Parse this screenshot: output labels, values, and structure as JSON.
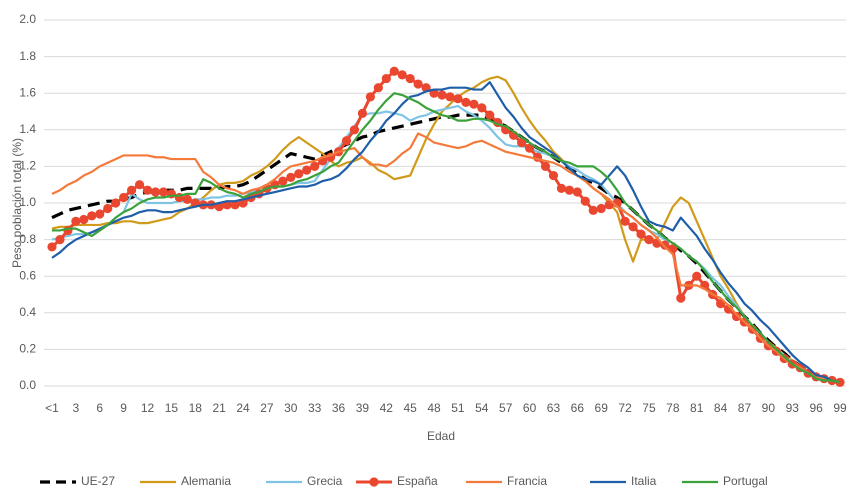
{
  "chart_data": {
    "type": "line",
    "x_label": "Edad",
    "y_label": "Peso población total (%)",
    "categories": [
      "<1",
      null,
      null,
      "3",
      null,
      null,
      "6",
      null,
      null,
      "9",
      null,
      null,
      "12",
      null,
      null,
      "15",
      null,
      null,
      "18",
      null,
      null,
      "21",
      null,
      null,
      "24",
      null,
      null,
      "27",
      null,
      null,
      "30",
      null,
      null,
      "33",
      null,
      null,
      "36",
      null,
      null,
      "39",
      null,
      null,
      "42",
      null,
      null,
      "45",
      null,
      null,
      "48",
      null,
      null,
      "51",
      null,
      null,
      "54",
      null,
      null,
      "57",
      null,
      null,
      "60",
      null,
      null,
      "63",
      null,
      null,
      "66",
      null,
      null,
      "69",
      null,
      null,
      "72",
      null,
      null,
      "75",
      null,
      null,
      "78",
      null,
      null,
      "81",
      null,
      null,
      "84",
      null,
      null,
      "87",
      null,
      null,
      "90",
      null,
      null,
      "93",
      null,
      null,
      "96",
      null,
      null,
      "99"
    ],
    "ylim": [
      0,
      2
    ],
    "yticks": [
      {
        "value": 0,
        "label": "0.0"
      },
      {
        "value": 0.2,
        "label": "0.2"
      },
      {
        "value": 0.4,
        "label": "0.4"
      },
      {
        "value": 0.6,
        "label": "0.6"
      },
      {
        "value": 0.8,
        "label": "0.8"
      },
      {
        "value": 1,
        "label": "1.0"
      },
      {
        "value": 1.2,
        "label": "1.2"
      },
      {
        "value": 1.4,
        "label": "1.4"
      },
      {
        "value": 1.6,
        "label": "1.6"
      },
      {
        "value": 1.8,
        "label": "1.8"
      },
      {
        "value": 2,
        "label": "2.0"
      }
    ],
    "grid": true,
    "legend": "bottom",
    "series": [
      {
        "name": "UE-27",
        "color": "#000000",
        "line_style": "dashed",
        "values": [
          0.92,
          0.94,
          0.96,
          0.97,
          0.98,
          0.99,
          1.0,
          1.01,
          1.01,
          1.02,
          1.03,
          1.05,
          1.06,
          1.06,
          1.07,
          1.07,
          1.07,
          1.08,
          1.08,
          1.08,
          1.08,
          1.08,
          1.09,
          1.09,
          1.1,
          1.12,
          1.15,
          1.18,
          1.21,
          1.24,
          1.27,
          1.26,
          1.25,
          1.24,
          1.26,
          1.28,
          1.3,
          1.32,
          1.34,
          1.36,
          1.37,
          1.39,
          1.4,
          1.41,
          1.42,
          1.43,
          1.44,
          1.45,
          1.46,
          1.47,
          1.47,
          1.48,
          1.48,
          1.48,
          1.48,
          1.46,
          1.44,
          1.42,
          1.39,
          1.36,
          1.33,
          1.3,
          1.28,
          1.25,
          1.22,
          1.19,
          1.16,
          1.13,
          1.11,
          1.08,
          1.05,
          1.03,
          1.0,
          0.96,
          0.92,
          0.88,
          0.85,
          0.81,
          0.78,
          0.74,
          0.71,
          0.67,
          0.62,
          0.57,
          0.52,
          0.47,
          0.43,
          0.38,
          0.34,
          0.29,
          0.25,
          0.21,
          0.18,
          0.14,
          0.11,
          0.08,
          0.06,
          0.04,
          0.03,
          0.02
        ]
      },
      {
        "name": "Alemania",
        "color": "#d19a1a",
        "values": [
          0.86,
          0.87,
          0.87,
          0.88,
          0.88,
          0.88,
          0.88,
          0.89,
          0.89,
          0.9,
          0.9,
          0.89,
          0.89,
          0.9,
          0.91,
          0.92,
          0.95,
          0.97,
          1.0,
          1.03,
          1.07,
          1.1,
          1.11,
          1.11,
          1.12,
          1.15,
          1.17,
          1.2,
          1.24,
          1.29,
          1.33,
          1.36,
          1.33,
          1.3,
          1.27,
          1.23,
          1.2,
          1.22,
          1.23,
          1.25,
          1.22,
          1.18,
          1.16,
          1.13,
          1.14,
          1.15,
          1.25,
          1.35,
          1.43,
          1.5,
          1.54,
          1.58,
          1.61,
          1.63,
          1.66,
          1.68,
          1.69,
          1.67,
          1.6,
          1.52,
          1.45,
          1.39,
          1.34,
          1.28,
          1.24,
          1.19,
          1.15,
          1.12,
          1.08,
          1.05,
          1.0,
          0.95,
          0.8,
          0.68,
          0.8,
          0.8,
          0.8,
          0.89,
          0.98,
          1.03,
          1.0,
          0.9,
          0.8,
          0.7,
          0.6,
          0.53,
          0.45,
          0.38,
          0.33,
          0.29,
          0.24,
          0.21,
          0.17,
          0.14,
          0.11,
          0.08,
          0.05,
          0.04,
          0.03,
          0.02
        ]
      },
      {
        "name": "Grecia",
        "color": "#7fc4e4",
        "values": [
          0.8,
          0.81,
          0.82,
          0.83,
          0.83,
          0.84,
          0.85,
          0.88,
          0.92,
          0.95,
          1.05,
          1.02,
          1.0,
          1.0,
          1.0,
          1.0,
          1.01,
          1.01,
          1.02,
          1.02,
          1.03,
          1.03,
          1.04,
          1.04,
          1.05,
          1.06,
          1.07,
          1.08,
          1.09,
          1.09,
          1.1,
          1.11,
          1.11,
          1.12,
          1.18,
          1.24,
          1.3,
          1.36,
          1.42,
          1.48,
          1.49,
          1.49,
          1.5,
          1.49,
          1.48,
          1.45,
          1.47,
          1.48,
          1.5,
          1.51,
          1.52,
          1.53,
          1.5,
          1.48,
          1.45,
          1.41,
          1.36,
          1.32,
          1.31,
          1.31,
          1.3,
          1.28,
          1.27,
          1.25,
          1.23,
          1.2,
          1.18,
          1.15,
          1.13,
          1.1,
          1.05,
          1.0,
          0.95,
          0.92,
          0.88,
          0.85,
          0.83,
          0.8,
          0.78,
          0.75,
          0.71,
          0.68,
          0.64,
          0.59,
          0.55,
          0.49,
          0.44,
          0.38,
          0.33,
          0.29,
          0.24,
          0.2,
          0.17,
          0.13,
          0.1,
          0.08,
          0.05,
          0.04,
          0.03,
          0.02
        ]
      },
      {
        "name": "España",
        "color": "#e9472f",
        "marker": "circle",
        "values": [
          0.76,
          0.8,
          0.85,
          0.9,
          0.91,
          0.93,
          0.94,
          0.97,
          1.0,
          1.03,
          1.07,
          1.1,
          1.07,
          1.06,
          1.06,
          1.05,
          1.03,
          1.02,
          1.0,
          0.99,
          0.99,
          0.98,
          0.99,
          0.99,
          1.0,
          1.03,
          1.05,
          1.08,
          1.1,
          1.12,
          1.14,
          1.16,
          1.18,
          1.2,
          1.23,
          1.25,
          1.28,
          1.34,
          1.4,
          1.49,
          1.58,
          1.63,
          1.68,
          1.72,
          1.7,
          1.68,
          1.65,
          1.63,
          1.6,
          1.59,
          1.58,
          1.57,
          1.55,
          1.54,
          1.52,
          1.48,
          1.44,
          1.4,
          1.37,
          1.33,
          1.3,
          1.25,
          1.2,
          1.15,
          1.08,
          1.07,
          1.06,
          1.01,
          0.96,
          0.97,
          0.99,
          1.0,
          0.9,
          0.87,
          0.83,
          0.8,
          0.78,
          0.77,
          0.75,
          0.48,
          0.55,
          0.6,
          0.55,
          0.5,
          0.45,
          0.42,
          0.38,
          0.35,
          0.31,
          0.26,
          0.22,
          0.19,
          0.15,
          0.12,
          0.1,
          0.07,
          0.05,
          0.04,
          0.03,
          0.02
        ]
      },
      {
        "name": "Francia",
        "color": "#f47a3c",
        "values": [
          1.05,
          1.07,
          1.1,
          1.12,
          1.15,
          1.17,
          1.2,
          1.22,
          1.24,
          1.26,
          1.26,
          1.26,
          1.26,
          1.25,
          1.25,
          1.24,
          1.24,
          1.24,
          1.24,
          1.17,
          1.14,
          1.1,
          1.08,
          1.07,
          1.05,
          1.07,
          1.08,
          1.1,
          1.13,
          1.17,
          1.2,
          1.21,
          1.22,
          1.23,
          1.25,
          1.26,
          1.28,
          1.29,
          1.3,
          1.25,
          1.21,
          1.21,
          1.2,
          1.23,
          1.27,
          1.3,
          1.38,
          1.36,
          1.33,
          1.32,
          1.31,
          1.3,
          1.31,
          1.33,
          1.34,
          1.32,
          1.3,
          1.28,
          1.27,
          1.26,
          1.25,
          1.24,
          1.23,
          1.22,
          1.2,
          1.17,
          1.15,
          1.12,
          1.08,
          1.05,
          1.02,
          0.98,
          0.95,
          0.92,
          0.88,
          0.85,
          0.81,
          0.76,
          0.72,
          0.55,
          0.55,
          0.55,
          0.53,
          0.5,
          0.48,
          0.44,
          0.39,
          0.35,
          0.31,
          0.26,
          0.22,
          0.19,
          0.15,
          0.12,
          0.1,
          0.07,
          0.05,
          0.04,
          0.03,
          0.02
        ]
      },
      {
        "name": "Italia",
        "color": "#1f5ea8",
        "values": [
          0.7,
          0.73,
          0.77,
          0.8,
          0.82,
          0.84,
          0.86,
          0.88,
          0.9,
          0.92,
          0.93,
          0.95,
          0.96,
          0.96,
          0.95,
          0.95,
          0.96,
          0.97,
          0.98,
          0.99,
          0.99,
          1.0,
          1.01,
          1.01,
          1.02,
          1.03,
          1.04,
          1.05,
          1.06,
          1.07,
          1.08,
          1.09,
          1.09,
          1.1,
          1.12,
          1.13,
          1.15,
          1.19,
          1.24,
          1.28,
          1.34,
          1.39,
          1.45,
          1.49,
          1.54,
          1.58,
          1.59,
          1.61,
          1.62,
          1.62,
          1.63,
          1.63,
          1.63,
          1.62,
          1.62,
          1.66,
          1.59,
          1.52,
          1.47,
          1.41,
          1.36,
          1.33,
          1.3,
          1.27,
          1.23,
          1.19,
          1.15,
          1.13,
          1.12,
          1.1,
          1.15,
          1.2,
          1.15,
          1.07,
          0.98,
          0.9,
          0.88,
          0.87,
          0.85,
          0.92,
          0.87,
          0.82,
          0.75,
          0.69,
          0.62,
          0.56,
          0.51,
          0.45,
          0.41,
          0.36,
          0.32,
          0.27,
          0.22,
          0.17,
          0.13,
          0.1,
          0.06,
          0.05,
          0.03,
          0.02
        ]
      },
      {
        "name": "Portugal",
        "color": "#3ba23b",
        "values": [
          0.85,
          0.85,
          0.86,
          0.86,
          0.84,
          0.82,
          0.85,
          0.88,
          0.92,
          0.95,
          0.97,
          1.0,
          1.02,
          1.03,
          1.03,
          1.04,
          1.04,
          1.05,
          1.05,
          1.13,
          1.11,
          1.08,
          1.06,
          1.05,
          1.03,
          1.05,
          1.06,
          1.08,
          1.09,
          1.09,
          1.1,
          1.12,
          1.13,
          1.15,
          1.17,
          1.2,
          1.22,
          1.28,
          1.34,
          1.4,
          1.45,
          1.51,
          1.56,
          1.6,
          1.59,
          1.57,
          1.55,
          1.52,
          1.5,
          1.48,
          1.47,
          1.45,
          1.45,
          1.46,
          1.46,
          1.45,
          1.43,
          1.42,
          1.39,
          1.36,
          1.33,
          1.3,
          1.28,
          1.25,
          1.23,
          1.22,
          1.2,
          1.2,
          1.2,
          1.17,
          1.13,
          1.07,
          1.0,
          0.96,
          0.92,
          0.88,
          0.85,
          0.81,
          0.78,
          0.75,
          0.71,
          0.68,
          0.63,
          0.57,
          0.52,
          0.47,
          0.43,
          0.38,
          0.33,
          0.29,
          0.24,
          0.2,
          0.16,
          0.12,
          0.09,
          0.07,
          0.04,
          0.03,
          0.03,
          0.02
        ]
      }
    ]
  }
}
